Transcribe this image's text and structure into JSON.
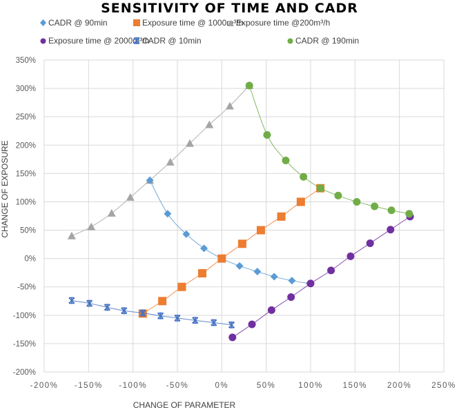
{
  "chart_data": {
    "type": "scatter",
    "title": "SENSITIVITY OF TIME AND CADR",
    "xlabel": "CHANGE OF PARAMETER",
    "ylabel": "CHANGE OF EXPOSURE",
    "xlim": [
      -200,
      250
    ],
    "ylim": [
      -200,
      350
    ],
    "x_ticks": [
      -200,
      -150,
      -100,
      -50,
      0,
      50,
      100,
      150,
      200,
      250
    ],
    "x_tick_labels": [
      "-200%",
      "-150%",
      "-100%",
      "-50%",
      "0%",
      "50%",
      "100%",
      "150%",
      "200%",
      "250%"
    ],
    "y_ticks": [
      350,
      300,
      250,
      200,
      150,
      100,
      50,
      0,
      -50,
      -100,
      -150,
      -200
    ],
    "y_tick_labels": [
      "350%",
      "300%",
      "250%",
      "200%",
      "150%",
      "100%",
      "50%",
      "0%",
      "-50%",
      "-100%",
      "-150%",
      "-200%"
    ],
    "grid": true,
    "legend_position": "top",
    "series": [
      {
        "name": "CADR @ 90min",
        "marker": "diamond",
        "color": "#5B9BD5",
        "x": [
          -81,
          -61,
          -40,
          -20,
          0,
          20,
          40,
          59,
          79,
          99
        ],
        "y": [
          138,
          79,
          43,
          18,
          0,
          -13,
          -23,
          -32,
          -39,
          -44
        ]
      },
      {
        "name": "Exposure time @ 1000m³/h",
        "marker": "square",
        "color": "#ED7D31",
        "x": [
          -89,
          -67,
          -45,
          -22,
          0,
          23,
          44,
          67,
          89,
          111
        ],
        "y": [
          -97,
          -75,
          -50,
          -26,
          0,
          26,
          50,
          74,
          100,
          124
        ]
      },
      {
        "name": "Exposure time @200m³/h",
        "marker": "triangle",
        "color": "#A5A5A5",
        "x": [
          -169,
          -147,
          -124,
          -103,
          -81,
          -58,
          -36,
          -14,
          9,
          31
        ],
        "y": [
          40,
          56,
          80,
          108,
          138,
          170,
          203,
          236,
          269,
          305
        ]
      },
      {
        "name": "Exposure time @ 2000m³/h",
        "marker": "circle",
        "color": "#7030A0",
        "x": [
          12,
          34,
          56,
          78,
          100,
          123,
          145,
          167,
          190,
          212
        ],
        "y": [
          -139,
          -116,
          -91,
          -68,
          -44,
          -21,
          4,
          27,
          51,
          74
        ]
      },
      {
        "name": "CADR @ 10min",
        "marker": "asterisk",
        "color": "#4472C4",
        "x": [
          -169,
          -149,
          -129,
          -110,
          -89,
          -69,
          -50,
          -30,
          -9,
          11
        ],
        "y": [
          -74,
          -79,
          -86,
          -92,
          -96,
          -101,
          -105,
          -109,
          -113,
          -117
        ]
      },
      {
        "name": "CADR @ 190min",
        "marker": "circle",
        "color": "#70AD47",
        "x": [
          31,
          51,
          72,
          92,
          111,
          131,
          152,
          172,
          191,
          211
        ],
        "y": [
          305,
          218,
          173,
          144,
          124,
          111,
          100,
          92,
          85,
          79
        ]
      }
    ]
  }
}
